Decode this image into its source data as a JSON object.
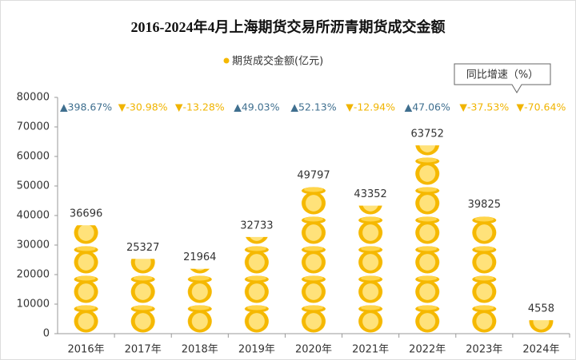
{
  "chart_data": {
    "type": "pictorial-bar",
    "title": "2016-2024年4月上海期货交易所沥青期货成交金额",
    "categories": [
      "2016年",
      "2017年",
      "2018年",
      "2019年",
      "2020年",
      "2021年",
      "2022年",
      "2023年",
      "2024年"
    ],
    "series": [
      {
        "name": "期货成交金额(亿元)",
        "color": "#f5b800",
        "values": [
          36696,
          25327,
          21964,
          32733,
          49797,
          43352,
          63752,
          39825,
          4558
        ]
      }
    ],
    "growth": {
      "name": "同比增速（%）",
      "up_color": "#3f6f8f",
      "down_color": "#f0b400",
      "values": [
        398.67,
        -30.98,
        -13.28,
        49.03,
        52.13,
        -12.94,
        47.06,
        -37.53,
        -70.64
      ],
      "value_labels": [
        "▲398.67%",
        "▼-30.98%",
        "▼-13.28%",
        "▲49.03%",
        "▲52.13%",
        "▼-12.94%",
        "▲47.06%",
        "▼-37.53%",
        "▼-70.64%"
      ]
    },
    "ylim": [
      0,
      80000
    ],
    "yticks": [
      0,
      10000,
      20000,
      30000,
      40000,
      50000,
      60000,
      70000,
      80000
    ],
    "icon_step": 10000
  }
}
